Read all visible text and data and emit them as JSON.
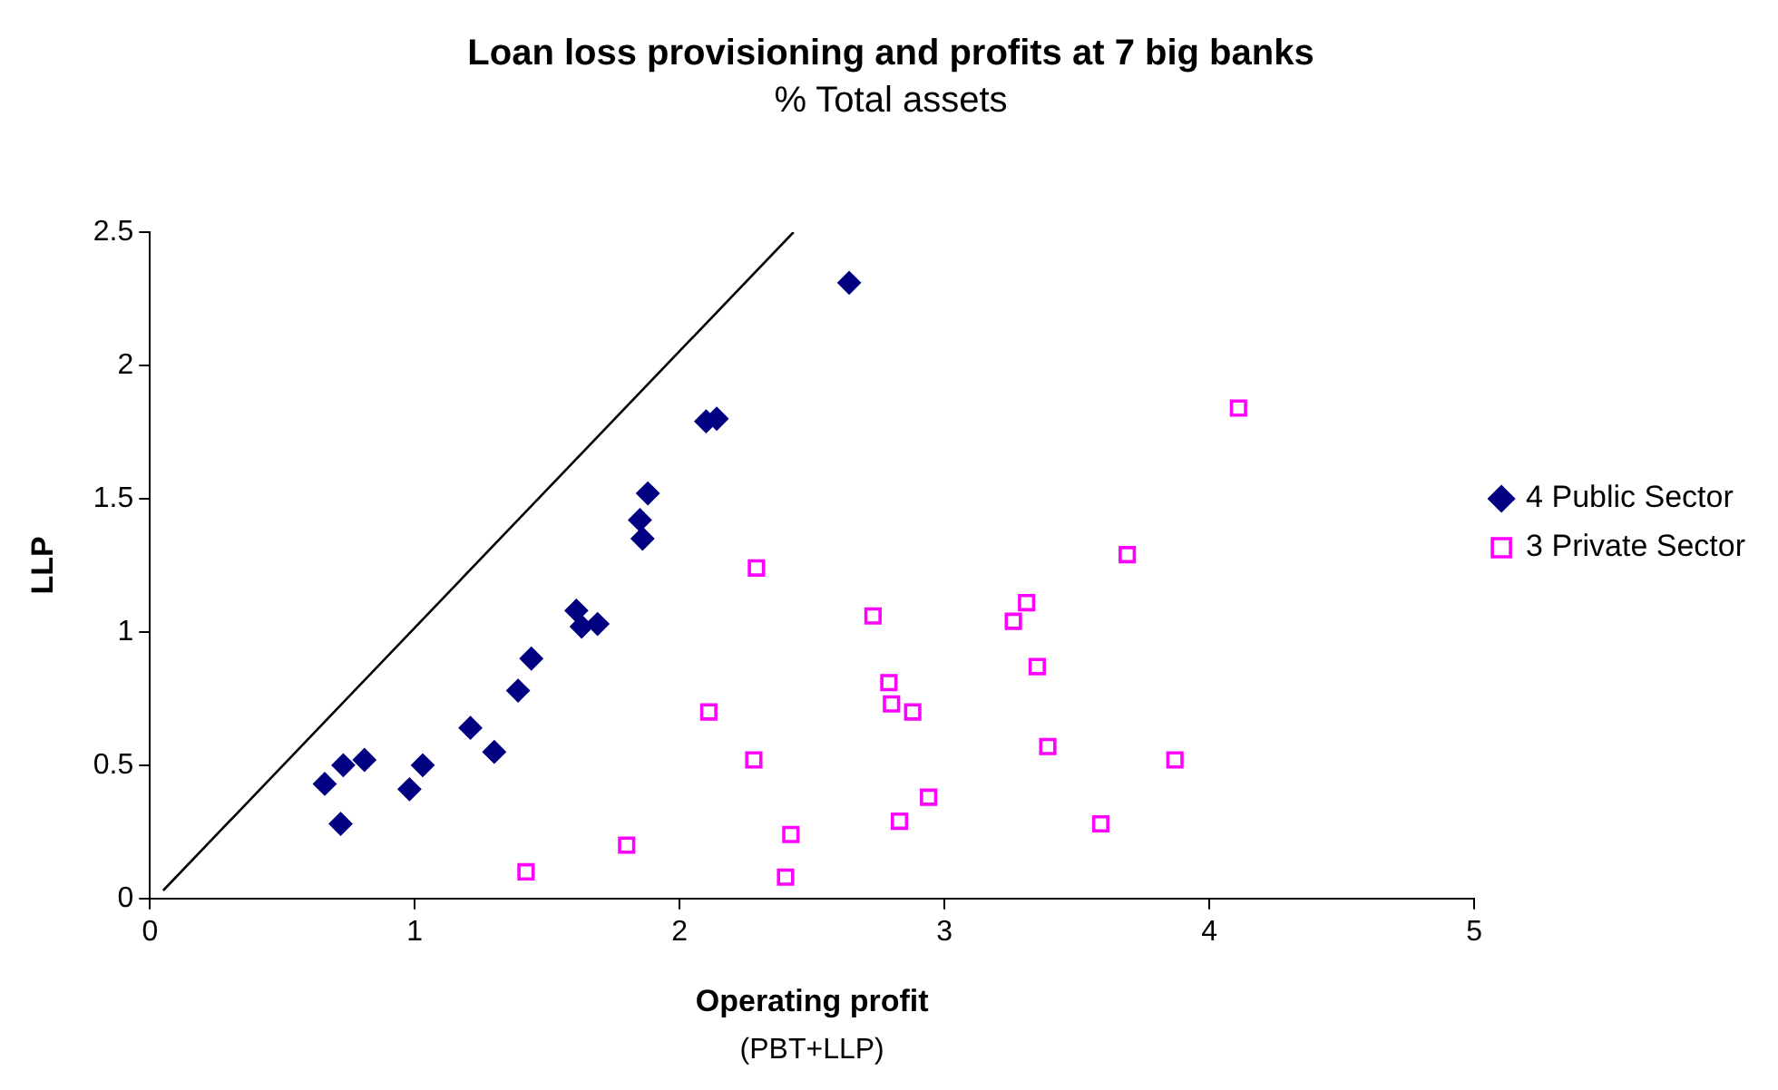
{
  "chart_data": {
    "type": "scatter",
    "title": "Loan loss provisioning and profits at 7 big banks",
    "subtitle": "% Total assets",
    "xlabel": "Operating profit",
    "ylabel": "LLP",
    "annotations": [
      "(PBT+LLP)"
    ],
    "xlim": [
      0,
      5
    ],
    "xticks": [
      0,
      1,
      2,
      3,
      4,
      5
    ],
    "ylim": [
      0,
      2.5
    ],
    "yticks": [
      0,
      0.5,
      1,
      1.5,
      2,
      2.5
    ],
    "grid": false,
    "legend": "right",
    "series": [
      {
        "name": "4 Public Sector",
        "color": "#000080",
        "marker": "diamond",
        "x": [
          0.66,
          0.72,
          0.73,
          0.81,
          0.98,
          1.03,
          1.21,
          1.3,
          1.39,
          1.44,
          1.61,
          1.63,
          1.69,
          1.85,
          1.86,
          1.88,
          2.1,
          2.14,
          2.64
        ],
        "values": [
          0.43,
          0.28,
          0.5,
          0.52,
          0.41,
          0.5,
          0.64,
          0.55,
          0.78,
          0.9,
          1.08,
          1.02,
          1.03,
          1.42,
          1.35,
          1.52,
          1.79,
          1.8,
          2.31
        ]
      },
      {
        "name": "3 Private Sector",
        "color": "#ff00ff",
        "marker": "square",
        "x": [
          1.42,
          1.8,
          2.11,
          2.29,
          2.28,
          2.4,
          2.42,
          2.73,
          2.79,
          2.8,
          2.83,
          2.88,
          2.94,
          3.26,
          3.31,
          3.35,
          3.39,
          3.59,
          3.69,
          3.87,
          4.11
        ],
        "values": [
          0.1,
          0.2,
          0.7,
          1.24,
          0.52,
          0.08,
          0.24,
          1.06,
          0.81,
          0.73,
          0.29,
          0.7,
          0.38,
          1.04,
          1.11,
          0.87,
          0.57,
          0.28,
          1.29,
          0.52,
          1.84
        ]
      },
      {
        "type": "line",
        "color": "#000000",
        "marker": "none",
        "x": [
          0.05,
          2.43
        ],
        "values": [
          0.03,
          2.5
        ]
      }
    ]
  }
}
